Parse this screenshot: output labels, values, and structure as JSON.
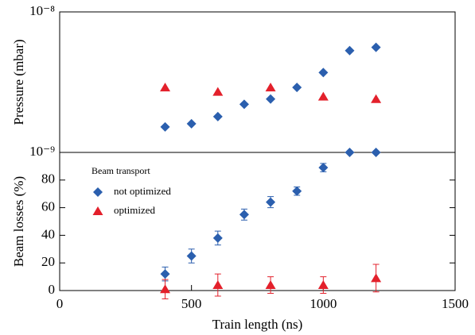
{
  "chart_data": [
    {
      "type": "scatter",
      "ylabel": "Pressure (mbar)",
      "log_y": true,
      "xlim": [
        0,
        1500
      ],
      "ylim": [
        1e-09,
        1e-08
      ],
      "yticks": [
        {
          "value": 1e-09,
          "label": "10⁻⁹"
        },
        {
          "value": 1e-08,
          "label": "10⁻⁸"
        }
      ],
      "series": [
        {
          "name": "not optimized",
          "color": "#2b5fae",
          "marker": "diamond",
          "x": [
            400,
            500,
            600,
            700,
            800,
            900,
            1000,
            1100,
            1200
          ],
          "values": [
            1.52e-09,
            1.6e-09,
            1.8e-09,
            2.2e-09,
            2.4e-09,
            2.9e-09,
            3.7e-09,
            5.3e-09,
            5.6e-09
          ]
        },
        {
          "name": "optimized",
          "color": "#e3202b",
          "marker": "triangle",
          "x": [
            400,
            600,
            800,
            1000,
            1200
          ],
          "values": [
            2.9e-09,
            2.7e-09,
            2.9e-09,
            2.5e-09,
            2.4e-09
          ]
        }
      ]
    },
    {
      "type": "scatter",
      "ylabel": "Beam losses (%)",
      "xlabel": "Train length (ns)",
      "xlim": [
        0,
        1500
      ],
      "xticks": [
        0,
        500,
        1000,
        1500
      ],
      "ylim": [
        0,
        100
      ],
      "yticks": [
        0,
        20,
        40,
        60,
        80
      ],
      "legend_title": "Beam transport",
      "legend": "upper left",
      "series": [
        {
          "name": "not optimized",
          "color": "#2b5fae",
          "marker": "diamond",
          "x": [
            400,
            500,
            600,
            700,
            800,
            900,
            1000,
            1100,
            1200
          ],
          "values": [
            12,
            25,
            38,
            55,
            64,
            72,
            89,
            100,
            100
          ],
          "errors": [
            5,
            5,
            5,
            4,
            4,
            3,
            3,
            0,
            0
          ]
        },
        {
          "name": "optimized",
          "color": "#e3202b",
          "marker": "triangle",
          "x": [
            400,
            600,
            800,
            1000,
            1200
          ],
          "values": [
            1,
            4,
            4,
            4,
            9
          ],
          "errors": [
            7,
            8,
            6,
            6,
            10
          ]
        }
      ]
    }
  ]
}
